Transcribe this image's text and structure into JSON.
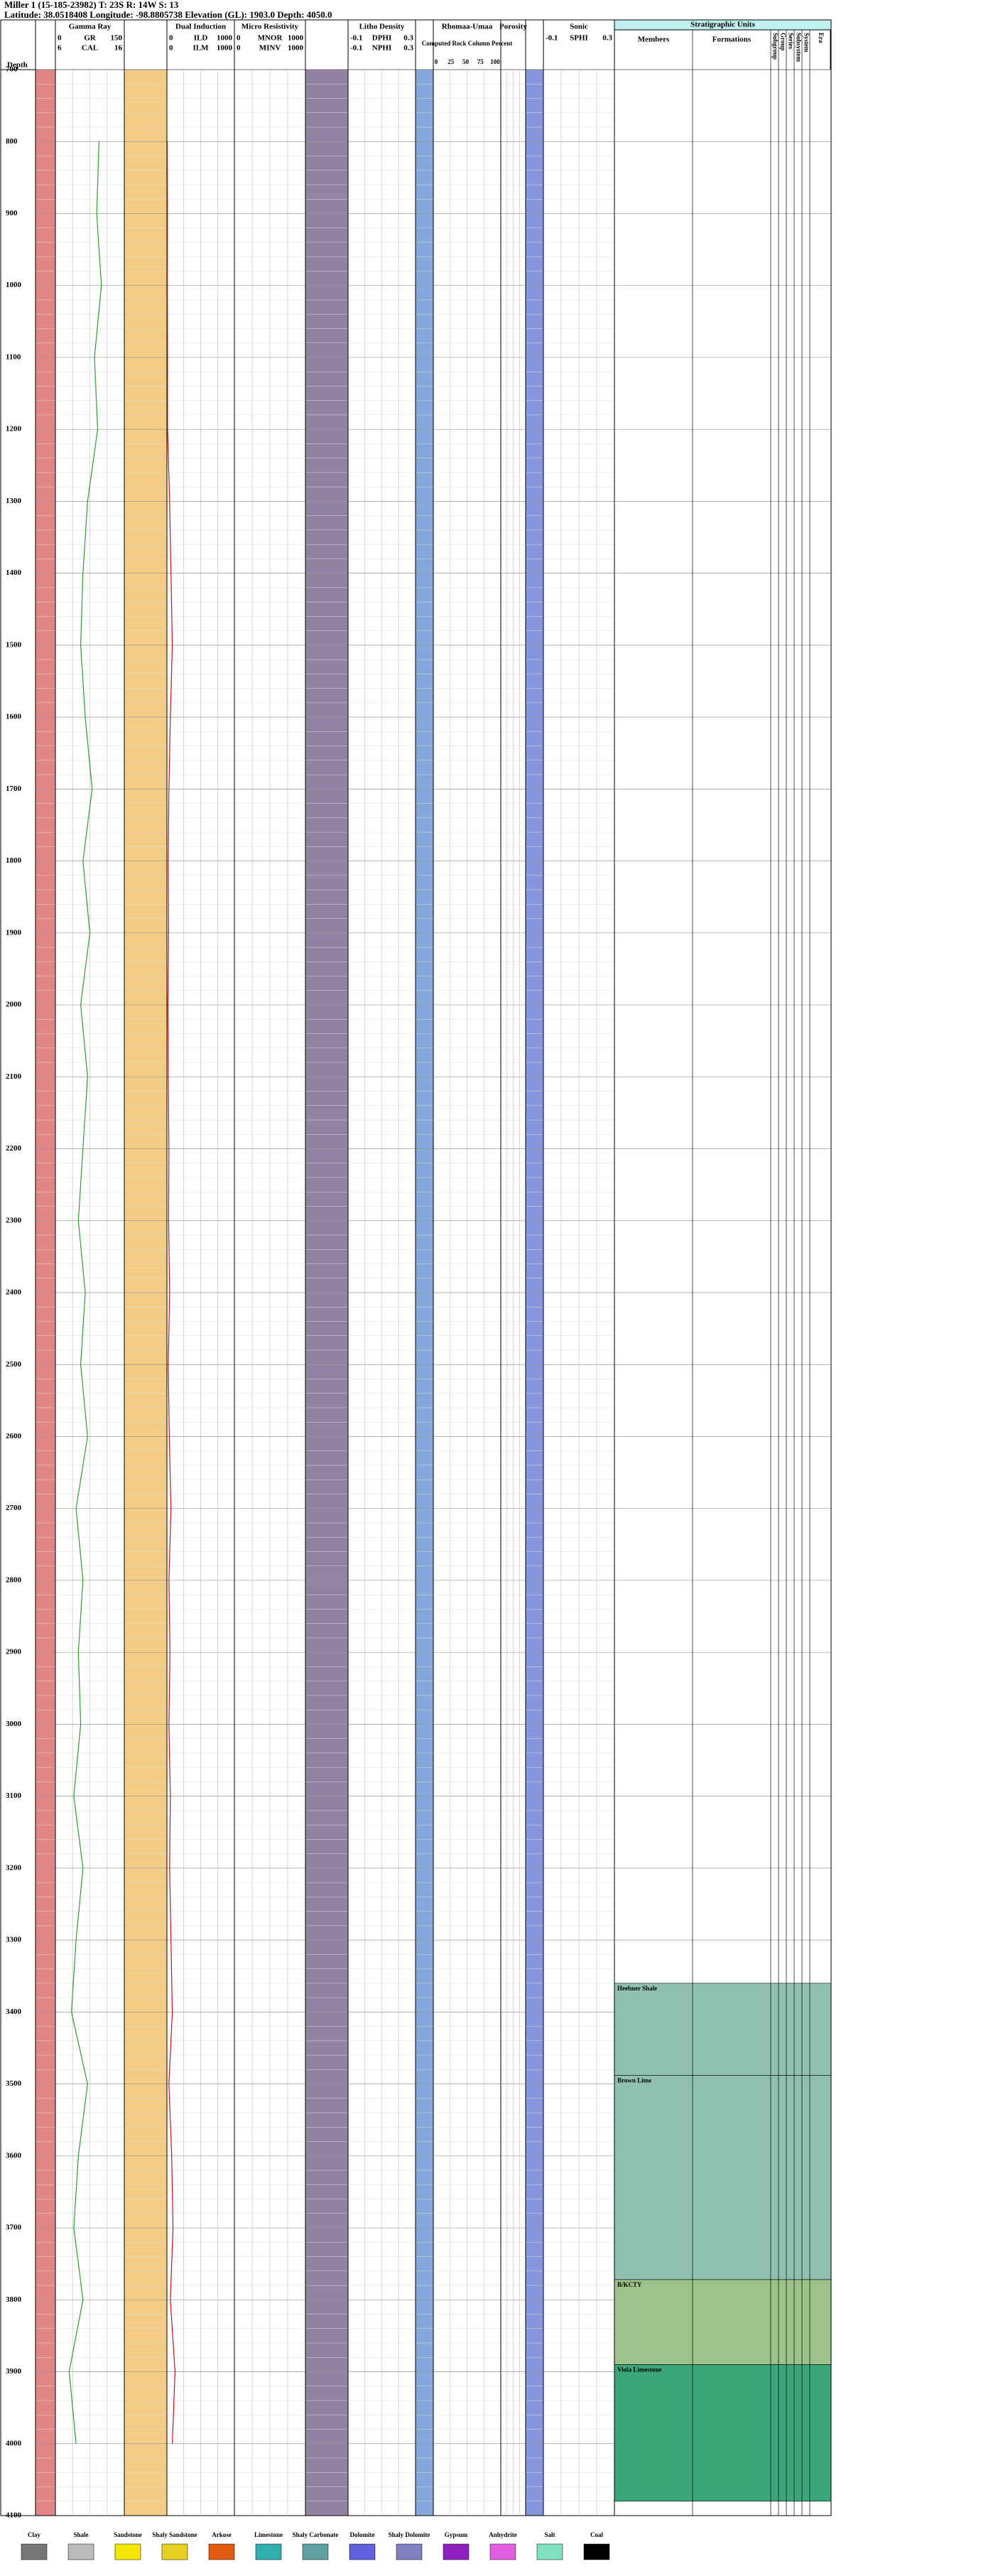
{
  "header": {
    "title": "Miller 1 (15-185-23982) T: 23S R: 14W S: 13",
    "subtitle": "Latitude: 38.0518408 Longitude: -98.8805738 Elevation (GL): 1903.0 Depth: 4050.0"
  },
  "chart_data": {
    "type": "well-log",
    "depth_label": "Depth",
    "ylim": [
      700,
      4100
    ],
    "yticks": [
      700,
      800,
      900,
      1000,
      1100,
      1200,
      1300,
      1400,
      1500,
      1600,
      1700,
      1800,
      1900,
      2000,
      2100,
      2200,
      2300,
      2400,
      2500,
      2600,
      2700,
      2800,
      2900,
      3000,
      3100,
      3200,
      3300,
      3400,
      3500,
      3600,
      3700,
      3800,
      3900,
      4000,
      4100
    ],
    "tracks": [
      {
        "title": "Gamma Ray",
        "curves": [
          {
            "name": "GR",
            "left": 0,
            "right": 150
          },
          {
            "name": "CAL",
            "left": 6,
            "right": 16
          }
        ]
      },
      {
        "title": "Dual Induction",
        "curves": [
          {
            "name": "ILD",
            "left": 0,
            "right": 1000
          },
          {
            "name": "ILM",
            "left": 0,
            "right": 1000
          }
        ]
      },
      {
        "title": "Micro Resistivity",
        "curves": [
          {
            "name": "MNOR",
            "left": 0,
            "right": 1000
          },
          {
            "name": "MINV",
            "left": 0,
            "right": 1000
          }
        ]
      },
      {
        "title": "Litho Density",
        "curves": [
          {
            "name": "DPHI",
            "left": -0.1,
            "right": 0.3
          },
          {
            "name": "NPHI",
            "left": -0.1,
            "right": 0.3
          }
        ]
      },
      {
        "title": "Rhomaa-Umaa",
        "curves": []
      },
      {
        "title": "Porosity",
        "curves": []
      },
      {
        "title": "Sonic",
        "curves": [
          {
            "name": "SPHI",
            "left": -0.1,
            "right": 0.3
          }
        ]
      }
    ],
    "rock_column": {
      "title": "Computed Rock Column Percent",
      "ticks": [
        0,
        25,
        50,
        75,
        100
      ]
    },
    "depths": [
      700,
      800,
      900,
      1000,
      1100,
      1200,
      1300,
      1400,
      1500,
      1600,
      1700,
      1800,
      1900,
      2000,
      2100,
      2200,
      2300,
      2400,
      2500,
      2600,
      2700,
      2800,
      2900,
      3000,
      3100,
      3200,
      3300,
      3400,
      3500,
      3600,
      3700,
      3800,
      3900,
      4000,
      4100
    ],
    "series": [
      {
        "name": "GR",
        "track": 0,
        "color": "#2e9e2e",
        "values": [
          null,
          95,
          90,
          100,
          85,
          92,
          70,
          60,
          55,
          65,
          80,
          60,
          75,
          55,
          70,
          60,
          50,
          65,
          55,
          70,
          45,
          60,
          50,
          55,
          40,
          60,
          45,
          35,
          70,
          50,
          40,
          60,
          30,
          45,
          null
        ]
      },
      {
        "name": "ILD",
        "track": 1,
        "color": "#d01010",
        "values": [
          null,
          6,
          8,
          7,
          10,
          9,
          40,
          60,
          80,
          50,
          30,
          20,
          25,
          15,
          20,
          30,
          25,
          40,
          20,
          35,
          60,
          30,
          45,
          30,
          50,
          40,
          60,
          80,
          30,
          70,
          90,
          50,
          120,
          80,
          null
        ]
      }
    ]
  },
  "strat": {
    "title": "Stratigraphic Units",
    "columns": [
      "Members",
      "Formations",
      "Subgroup",
      "Group",
      "Series",
      "Subsystem",
      "System",
      "Era"
    ],
    "units": [
      {
        "label": "Heebner Shale",
        "top": 3360,
        "base": 3488,
        "color": "#8fc0b0"
      },
      {
        "label": "Brown Lime",
        "top": 3488,
        "base": 3772,
        "color": "#8fc0b0"
      },
      {
        "label": "B/KCTY",
        "top": 3772,
        "base": 3890,
        "color": "#9dc28a"
      },
      {
        "label": "Viola Limestone",
        "top": 3890,
        "base": 4080,
        "color": "#3aa67a"
      }
    ]
  },
  "legend": [
    "Clay",
    "Shale",
    "Sandstone",
    "Shaly Sandstone",
    "Arkose",
    "Limestone",
    "Shaly Carbonate",
    "Dolomite",
    "Shaly Dolomite",
    "Gypsum",
    "Anhydrite",
    "Salt",
    "Coal"
  ]
}
